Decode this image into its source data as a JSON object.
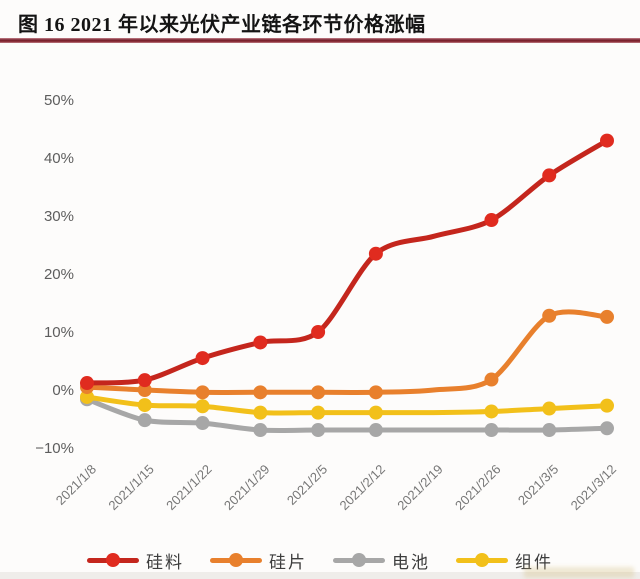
{
  "header": {
    "title": "图 16 2021 年以来光伏产业链各环节价格涨幅"
  },
  "chart_data": {
    "type": "line",
    "title": "图 16 2021 年以来光伏产业链各环节价格涨幅",
    "xlabel": "",
    "ylabel": "",
    "categories": [
      "2021/1/8",
      "2021/1/15",
      "2021/1/22",
      "2021/1/29",
      "2021/2/5",
      "2021/2/12",
      "2021/2/19",
      "2021/2/26",
      "2021/3/5",
      "2021/3/12"
    ],
    "series": [
      {
        "key": "polysilicon",
        "name": "硅料",
        "color": "#c4261d",
        "marker_color": "#e02b1f",
        "values": [
          1.2,
          1.7,
          5.5,
          8.2,
          10.0,
          23.5,
          26.5,
          29.3,
          37.0,
          43.0
        ]
      },
      {
        "key": "wafer",
        "name": "硅片",
        "color": "#e8802d",
        "marker_color": "#e8802d",
        "values": [
          0.5,
          0.0,
          -0.4,
          -0.4,
          -0.4,
          -0.4,
          0.0,
          1.8,
          12.8,
          12.6
        ]
      },
      {
        "key": "cell",
        "name": "电池",
        "color": "#a7a7a7",
        "marker_color": "#a7a7a7",
        "values": [
          -1.6,
          -5.2,
          -5.7,
          -6.9,
          -6.9,
          -6.9,
          -6.9,
          -6.9,
          -6.9,
          -6.6
        ]
      },
      {
        "key": "module",
        "name": "组件",
        "color": "#f2c01a",
        "marker_color": "#f2c01a",
        "values": [
          -1.2,
          -2.6,
          -2.8,
          -3.9,
          -3.9,
          -3.9,
          -3.9,
          -3.7,
          -3.2,
          -2.7
        ]
      }
    ],
    "draw_order": [
      "cell",
      "module",
      "wafer",
      "polysilicon"
    ],
    "hidden_marker_index": 6,
    "y_ticks": [
      {
        "value": 50,
        "label": "50%"
      },
      {
        "value": 40,
        "label": "40%"
      },
      {
        "value": 30,
        "label": "30%"
      },
      {
        "value": 20,
        "label": "20%"
      },
      {
        "value": 10,
        "label": "10%"
      },
      {
        "value": 0,
        "label": "0%"
      },
      {
        "value": -10,
        "label": "−10%"
      }
    ],
    "ylim": [
      -10,
      50
    ],
    "grid": false,
    "legend_position": "bottom",
    "x_tick_rotation": -45
  },
  "colors": {
    "title_rule": "#82242f",
    "y_tick_text": "#5d5d5d",
    "x_tick_text": "#767676"
  }
}
